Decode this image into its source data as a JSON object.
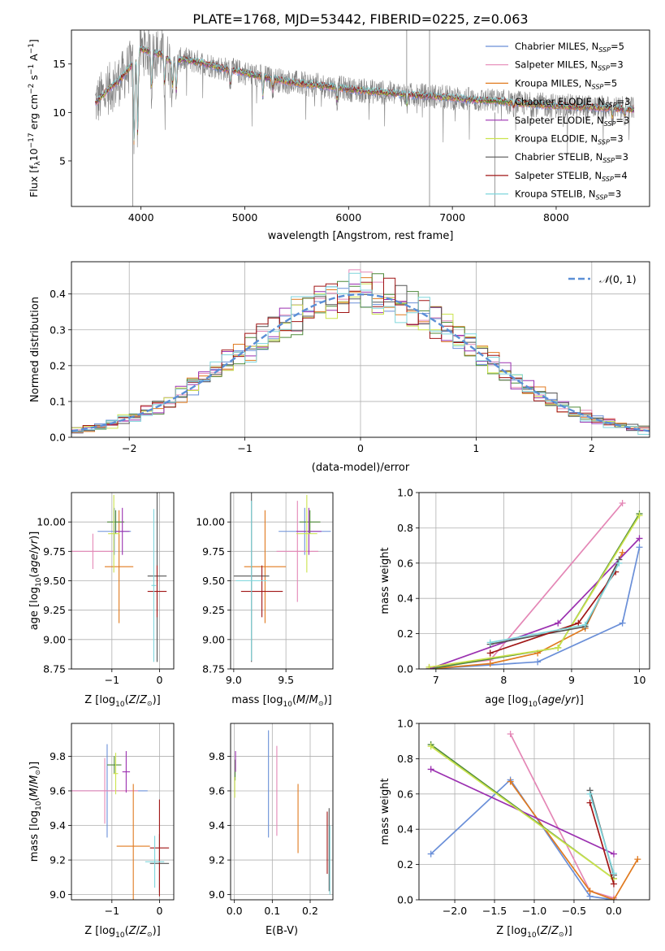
{
  "figure": {
    "title": "PLATE=1768, MJD=53442, FIBERID=0225, z=0.063"
  },
  "colors": {
    "Chabrier MILES": "#6a8fd8",
    "Salpeter MILES": "#e487b6",
    "Kroupa MILES": "#e07a1f",
    "Chabrier ELODIE": "#4f8a3a",
    "Salpeter ELODIE": "#9b30b0",
    "Kroupa ELODIE": "#cbe34c",
    "Chabrier STELIB": "#555555",
    "Salpeter STELIB": "#a01515",
    "Kroupa STELIB": "#7fd6dc",
    "data": "#808080",
    "normal": "#5b8fd6"
  },
  "chart_data": [
    {
      "id": "spectrum",
      "type": "line",
      "title": "PLATE=1768, MJD=53442, FIBERID=0225, z=0.063",
      "xlabel": "wavelength [Angstrom, rest frame]",
      "ylabel_parts": [
        "Flux [f",
        "λ",
        "10",
        "−17",
        " erg cm",
        "−2",
        " s",
        "−1",
        " A",
        "−1",
        "]"
      ],
      "xlim": [
        3330,
        8900
      ],
      "ylim": [
        0.3,
        18.5
      ],
      "xticks": [
        4000,
        5000,
        6000,
        7000,
        8000
      ],
      "yticks": [
        5,
        10,
        15
      ],
      "legend_position": "upper right",
      "legend": [
        {
          "name": "Chabrier MILES",
          "n": "5"
        },
        {
          "name": "Salpeter MILES",
          "n": "3"
        },
        {
          "name": "Kroupa MILES",
          "n": "5"
        },
        {
          "name": "Chabrier ELODIE",
          "n": "3"
        },
        {
          "name": "Salpeter ELODIE",
          "n": "3"
        },
        {
          "name": "Kroupa ELODIE",
          "n": "3"
        },
        {
          "name": "Chabrier STELIB",
          "n": "3"
        },
        {
          "name": "Salpeter STELIB",
          "n": "4"
        },
        {
          "name": "Kroupa STELIB",
          "n": "3"
        }
      ],
      "model_continuum": [
        [
          3560,
          11.0
        ],
        [
          3700,
          12.5
        ],
        [
          3800,
          13.4
        ],
        [
          3900,
          14.8
        ],
        [
          3950,
          15.5
        ],
        [
          4000,
          16.6
        ],
        [
          4100,
          16.2
        ],
        [
          4200,
          16.0
        ],
        [
          4300,
          15.1
        ],
        [
          4400,
          15.5
        ],
        [
          4600,
          15.1
        ],
        [
          4800,
          14.5
        ],
        [
          5000,
          14.1
        ],
        [
          5200,
          13.6
        ],
        [
          5400,
          13.2
        ],
        [
          5600,
          12.9
        ],
        [
          5800,
          12.7
        ],
        [
          6000,
          12.4
        ],
        [
          6200,
          12.2
        ],
        [
          6400,
          12.0
        ],
        [
          6600,
          11.8
        ],
        [
          6800,
          11.7
        ],
        [
          7000,
          11.5
        ],
        [
          7200,
          11.3
        ],
        [
          7400,
          11.2
        ],
        [
          7600,
          11.0
        ],
        [
          7800,
          10.8
        ],
        [
          8000,
          10.7
        ],
        [
          8200,
          10.6
        ],
        [
          8400,
          10.5
        ],
        [
          8600,
          10.4
        ],
        [
          8750,
          10.3
        ]
      ],
      "absorption_lines": [
        [
          3934,
          6.5
        ],
        [
          3968,
          8.0
        ],
        [
          4102,
          12.5
        ],
        [
          4227,
          13.0
        ],
        [
          4305,
          12.8
        ],
        [
          4340,
          12.2
        ],
        [
          4861,
          12.8
        ],
        [
          5175,
          11.8
        ],
        [
          5270,
          12.4
        ],
        [
          5890,
          11.2
        ],
        [
          6563,
          10.8
        ],
        [
          7590,
          10.5
        ],
        [
          8542,
          9.5
        ],
        [
          8662,
          9.8
        ]
      ]
    },
    {
      "id": "residuals",
      "type": "bar",
      "ylabel": "Normed distribution",
      "xlabel": "(data-model)/error",
      "xlim": [
        -2.5,
        2.5
      ],
      "ylim": [
        0,
        0.49
      ],
      "xticks": [
        -2,
        -1,
        0,
        1,
        2
      ],
      "yticks": [
        0.0,
        0.1,
        0.2,
        0.3,
        0.4
      ],
      "legend_position": "upper right",
      "legend_label_parts": [
        "𝒩",
        "(0, 1)"
      ],
      "bin_width": 0.1,
      "x_start": -2.5,
      "series_count": 9
    },
    {
      "id": "age_vs_Z",
      "type": "scatter",
      "xlabel": "Z [log",
      "xlabel_sub": "10",
      "xlabel_tail": "(Z/Z",
      "xlabel_end": ")]",
      "ylabel": "age  [log",
      "ylabel_sub": "10",
      "ylabel_tail": "(age/yr)]",
      "xlim": [
        -1.85,
        0.3
      ],
      "ylim": [
        8.75,
        10.25
      ],
      "xticks": [
        -1,
        0
      ],
      "yticks": [
        8.75,
        9.0,
        9.25,
        9.5,
        9.75,
        10.0
      ],
      "points": [
        {
          "series": "Chabrier MILES",
          "x": -0.95,
          "y": 9.92,
          "xerr": 0.35,
          "yerr": 0.2
        },
        {
          "series": "Salpeter MILES",
          "x": -1.4,
          "y": 9.75,
          "xerr": 0.45,
          "yerr": 0.15
        },
        {
          "series": "Kroupa MILES",
          "x": -0.85,
          "y": 9.62,
          "xerr": 0.3,
          "yerr": 0.48
        },
        {
          "series": "Chabrier ELODIE",
          "x": -0.92,
          "y": 10.0,
          "xerr": 0.18,
          "yerr": 0.1
        },
        {
          "series": "Salpeter ELODIE",
          "x": -0.78,
          "y": 9.92,
          "xerr": 0.15,
          "yerr": 0.2
        },
        {
          "series": "Kroupa ELODIE",
          "x": -0.96,
          "y": 9.9,
          "xerr": 0.12,
          "yerr": 0.33
        },
        {
          "series": "Chabrier STELIB",
          "x": -0.05,
          "y": 9.54,
          "xerr": 0.2,
          "yerr": 0.73
        },
        {
          "series": "Salpeter STELIB",
          "x": -0.05,
          "y": 9.41,
          "xerr": 0.2,
          "yerr": 0.22
        },
        {
          "series": "Kroupa STELIB",
          "x": -0.12,
          "y": 9.46,
          "xerr": 0.05,
          "yerr": 0.65
        }
      ]
    },
    {
      "id": "age_vs_mass",
      "type": "scatter",
      "xlabel": "mass [log",
      "xlabel_sub": "10",
      "xlabel_tail": "(M/M",
      "xlabel_end": ")]",
      "xlim": [
        8.97,
        9.95
      ],
      "ylim": [
        8.75,
        10.25
      ],
      "xticks": [
        9.0,
        9.5
      ],
      "yticks": [
        8.75,
        9.0,
        9.25,
        9.5,
        9.75,
        10.0
      ],
      "points": [
        {
          "series": "Chabrier MILES",
          "x": 9.68,
          "y": 9.92,
          "xerr": 0.25,
          "yerr": 0.2
        },
        {
          "series": "Salpeter MILES",
          "x": 9.61,
          "y": 9.75,
          "xerr": 0.2,
          "yerr": 0.43
        },
        {
          "series": "Kroupa MILES",
          "x": 9.3,
          "y": 9.62,
          "xerr": 0.2,
          "yerr": 0.48
        },
        {
          "series": "Chabrier ELODIE",
          "x": 9.73,
          "y": 10.0,
          "xerr": 0.1,
          "yerr": 0.1
        },
        {
          "series": "Salpeter ELODIE",
          "x": 9.72,
          "y": 9.92,
          "xerr": 0.12,
          "yerr": 0.2
        },
        {
          "series": "Kroupa ELODIE",
          "x": 9.7,
          "y": 9.9,
          "xerr": 0.1,
          "yerr": 0.33
        },
        {
          "series": "Chabrier STELIB",
          "x": 9.17,
          "y": 9.54,
          "xerr": 0.17,
          "yerr": 0.73
        },
        {
          "series": "Salpeter STELIB",
          "x": 9.27,
          "y": 9.41,
          "xerr": 0.2,
          "yerr": 0.22
        },
        {
          "series": "Kroupa STELIB",
          "x": 9.17,
          "y": 9.5,
          "xerr": 0.15,
          "yerr": 0.68
        }
      ]
    },
    {
      "id": "massweight_vs_age",
      "type": "line",
      "xlabel": "age  [log",
      "xlabel_sub": "10",
      "xlabel_tail": "(age/yr)]",
      "ylabel": "mass weight",
      "xlim": [
        6.75,
        10.15
      ],
      "ylim": [
        0,
        1.0
      ],
      "xticks": [
        7,
        8,
        9,
        10
      ],
      "yticks": [
        0.0,
        0.2,
        0.4,
        0.6,
        0.8,
        1.0
      ],
      "series": [
        {
          "name": "Chabrier MILES",
          "points": [
            [
              6.9,
              0.0
            ],
            [
              8.5,
              0.04
            ],
            [
              9.75,
              0.26
            ],
            [
              10.0,
              0.69
            ]
          ]
        },
        {
          "name": "Salpeter MILES",
          "points": [
            [
              6.9,
              0.01
            ],
            [
              7.8,
              0.05
            ],
            [
              9.75,
              0.94
            ]
          ]
        },
        {
          "name": "Kroupa MILES",
          "points": [
            [
              6.9,
              0.0
            ],
            [
              7.8,
              0.03
            ],
            [
              8.5,
              0.09
            ],
            [
              9.2,
              0.23
            ],
            [
              9.75,
              0.66
            ]
          ]
        },
        {
          "name": "Chabrier ELODIE",
          "points": [
            [
              6.9,
              0.0
            ],
            [
              8.8,
              0.12
            ],
            [
              10.0,
              0.88
            ]
          ]
        },
        {
          "name": "Salpeter ELODIE",
          "points": [
            [
              6.9,
              0.0
            ],
            [
              8.8,
              0.26
            ],
            [
              10.0,
              0.74
            ]
          ]
        },
        {
          "name": "Kroupa ELODIE",
          "points": [
            [
              6.9,
              0.01
            ],
            [
              8.8,
              0.12
            ],
            [
              10.0,
              0.87
            ]
          ]
        },
        {
          "name": "Chabrier STELIB",
          "points": [
            [
              7.8,
              0.14
            ],
            [
              9.2,
              0.24
            ],
            [
              9.7,
              0.62
            ]
          ]
        },
        {
          "name": "Salpeter STELIB",
          "points": [
            [
              7.8,
              0.09
            ],
            [
              9.1,
              0.26
            ],
            [
              9.65,
              0.55
            ]
          ]
        },
        {
          "name": "Kroupa STELIB",
          "points": [
            [
              7.8,
              0.15
            ],
            [
              9.2,
              0.25
            ],
            [
              9.7,
              0.6
            ]
          ]
        }
      ]
    },
    {
      "id": "mass_vs_Z",
      "type": "scatter",
      "xlabel": "Z [log",
      "xlabel_sub": "10",
      "xlabel_tail": "(Z/Z",
      "xlabel_end": ")]",
      "ylabel": "mass [log",
      "ylabel_sub": "10",
      "ylabel_tail": "(M/M",
      "ylabel_end": ")]",
      "xlim": [
        -1.85,
        0.3
      ],
      "ylim": [
        8.97,
        9.99
      ],
      "xticks": [
        -1,
        0
      ],
      "yticks": [
        9.0,
        9.2,
        9.4,
        9.6,
        9.8
      ],
      "points": [
        {
          "series": "Chabrier MILES",
          "x": -1.1,
          "y": 9.6,
          "xerr": 0.85,
          "yerr": 0.27
        },
        {
          "series": "Salpeter MILES",
          "x": -1.15,
          "y": 9.6,
          "xerr": 0.7,
          "yerr": 0.19
        },
        {
          "series": "Kroupa MILES",
          "x": -0.55,
          "y": 9.28,
          "xerr": 0.35,
          "yerr": 0.36
        },
        {
          "series": "Chabrier ELODIE",
          "x": -0.95,
          "y": 9.75,
          "xerr": 0.15,
          "yerr": 0.05
        },
        {
          "series": "Salpeter ELODIE",
          "x": -0.7,
          "y": 9.71,
          "xerr": 0.08,
          "yerr": 0.12
        },
        {
          "series": "Kroupa ELODIE",
          "x": -0.92,
          "y": 9.7,
          "xerr": 0.05,
          "yerr": 0.12
        },
        {
          "series": "Chabrier STELIB",
          "x": 0.0,
          "y": 9.18,
          "xerr": 0.2,
          "yerr": 0.17
        },
        {
          "series": "Salpeter STELIB",
          "x": 0.0,
          "y": 9.27,
          "xerr": 0.2,
          "yerr": 0.28
        },
        {
          "series": "Kroupa STELIB",
          "x": -0.1,
          "y": 9.19,
          "xerr": 0.2,
          "yerr": 0.15
        }
      ]
    },
    {
      "id": "mass_vs_EBV",
      "type": "scatter",
      "xlabel": "E(B-V)",
      "xlim": [
        -0.01,
        0.26
      ],
      "ylim": [
        8.97,
        9.99
      ],
      "xticks": [
        0.0,
        0.1,
        0.2
      ],
      "yticks": [
        9.0,
        9.2,
        9.4,
        9.6,
        9.8
      ],
      "points": [
        {
          "series": "Chabrier MILES",
          "x": 0.09,
          "y": 9.64,
          "yerr": 0.31
        },
        {
          "series": "Salpeter MILES",
          "x": 0.112,
          "y": 9.6,
          "yerr": 0.26
        },
        {
          "series": "Kroupa MILES",
          "x": 0.168,
          "y": 9.44,
          "yerr": 0.2
        },
        {
          "series": "Chabrier ELODIE",
          "x": 0.002,
          "y": 9.72,
          "yerr": 0.06
        },
        {
          "series": "Salpeter ELODIE",
          "x": 0.003,
          "y": 9.77,
          "yerr": 0.06
        },
        {
          "series": "Kroupa ELODIE",
          "x": 0.001,
          "y": 9.62,
          "yerr": 0.06
        },
        {
          "series": "Chabrier STELIB",
          "x": 0.25,
          "y": 9.26,
          "yerr": 0.24
        },
        {
          "series": "Salpeter STELIB",
          "x": 0.245,
          "y": 9.3,
          "yerr": 0.18
        },
        {
          "series": "Kroupa STELIB",
          "x": 0.252,
          "y": 9.2,
          "yerr": 0.2
        }
      ]
    },
    {
      "id": "massweight_vs_Z",
      "type": "line",
      "xlabel": "Z [log",
      "xlabel_sub": "10",
      "xlabel_tail": "(Z/Z",
      "xlabel_end": ")]",
      "ylabel": "mass weight",
      "xlim": [
        -2.45,
        0.45
      ],
      "ylim": [
        0,
        1.0
      ],
      "xticks": [
        -2.0,
        -1.5,
        -1.0,
        -0.5,
        0.0
      ],
      "yticks": [
        0.0,
        0.2,
        0.4,
        0.6,
        0.8,
        1.0
      ],
      "series": [
        {
          "name": "Chabrier MILES",
          "points": [
            [
              -2.3,
              0.26
            ],
            [
              -1.3,
              0.68
            ],
            [
              -0.3,
              0.02
            ],
            [
              0.0,
              0.0
            ]
          ]
        },
        {
          "name": "Salpeter MILES",
          "points": [
            [
              -1.3,
              0.94
            ],
            [
              -0.3,
              0.05
            ],
            [
              0.0,
              0.01
            ]
          ]
        },
        {
          "name": "Kroupa MILES",
          "points": [
            [
              -1.3,
              0.67
            ],
            [
              -0.3,
              0.05
            ],
            [
              0.0,
              0.0
            ],
            [
              0.3,
              0.23
            ]
          ]
        },
        {
          "name": "Chabrier ELODIE",
          "points": [
            [
              -2.3,
              0.88
            ],
            [
              0.0,
              0.12
            ]
          ]
        },
        {
          "name": "Salpeter ELODIE",
          "points": [
            [
              -2.3,
              0.74
            ],
            [
              0.0,
              0.26
            ]
          ]
        },
        {
          "name": "Kroupa ELODIE",
          "points": [
            [
              -2.3,
              0.87
            ],
            [
              0.0,
              0.12
            ]
          ]
        },
        {
          "name": "Chabrier STELIB",
          "points": [
            [
              -0.3,
              0.62
            ],
            [
              0.0,
              0.14
            ]
          ]
        },
        {
          "name": "Salpeter STELIB",
          "points": [
            [
              -0.3,
              0.55
            ],
            [
              0.0,
              0.09
            ]
          ]
        },
        {
          "name": "Kroupa STELIB",
          "points": [
            [
              -0.3,
              0.6
            ],
            [
              0.0,
              0.15
            ]
          ]
        }
      ]
    }
  ]
}
